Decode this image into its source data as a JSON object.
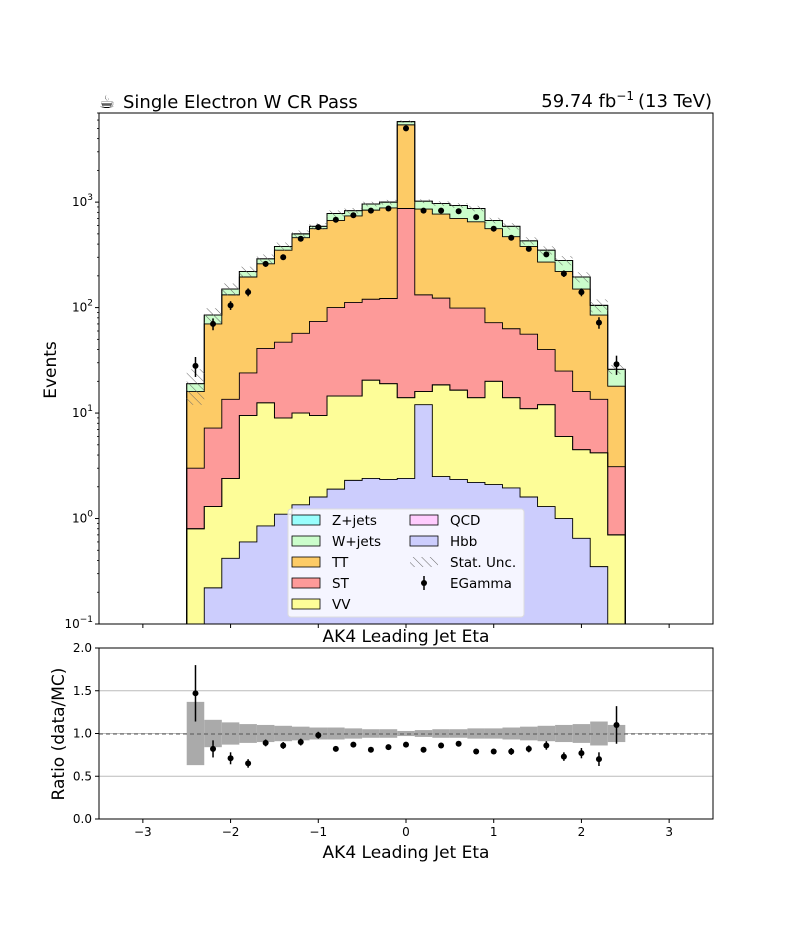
{
  "header": {
    "icon": "coffee-icon",
    "title": "Single Electron W CR Pass",
    "lumi_value": "59.74 fb",
    "lumi_exponent": "−1",
    "lumi_energy": "(13 TeV)"
  },
  "chart_data": [
    {
      "type": "stacked-histogram",
      "ylabel": "Events",
      "xlabel": "AK4 Leading Jet Eta",
      "yscale": "log",
      "ylim": [
        0.1,
        7000
      ],
      "xlim": [
        -3.5,
        3.5
      ],
      "ytick_labels": [
        {
          "value": 0.1,
          "base": "10",
          "exp": "−1"
        },
        {
          "value": 1,
          "base": "10",
          "exp": "0"
        },
        {
          "value": 10,
          "base": "10",
          "exp": "1"
        },
        {
          "value": 100,
          "base": "10",
          "exp": "2"
        },
        {
          "value": 1000,
          "base": "10",
          "exp": "3"
        }
      ],
      "bin_edges": [
        -2.5,
        -2.3,
        -2.1,
        -1.9,
        -1.7,
        -1.5,
        -1.3,
        -1.1,
        -0.9,
        -0.7,
        -0.5,
        -0.3,
        -0.1,
        0.1,
        0.3,
        0.5,
        0.7,
        0.9,
        1.1,
        1.3,
        1.5,
        1.7,
        1.9,
        2.1,
        2.3,
        2.5
      ],
      "stack_cumulative": [
        {
          "name": "Hbb",
          "color": "#cccdfd",
          "values": [
            0.1,
            0.22,
            0.42,
            0.6,
            0.85,
            1.1,
            1.35,
            1.6,
            1.9,
            2.3,
            2.4,
            2.35,
            2.4,
            12,
            2.5,
            2.35,
            2.2,
            2.1,
            1.95,
            1.6,
            1.3,
            1.0,
            0.65,
            0.35,
            0.1
          ]
        },
        {
          "name": "VV",
          "color": "#fdfd98",
          "values": [
            0.8,
            1.3,
            2.4,
            9.5,
            12.5,
            9,
            10,
            9.5,
            14.5,
            14.5,
            20.5,
            19,
            14,
            16,
            18.5,
            16.5,
            14,
            20,
            14,
            11,
            12,
            6,
            4.5,
            4.2,
            0.7
          ]
        },
        {
          "name": "QCD",
          "color": "#ffccfe",
          "values": [
            0.8,
            1.3,
            2.4,
            9.5,
            12.5,
            9,
            10,
            9.5,
            14.5,
            14.5,
            20.5,
            19,
            14,
            16,
            18.5,
            16.5,
            14,
            20,
            14,
            11,
            12,
            6,
            4.5,
            4.2,
            0.7
          ]
        },
        {
          "name": "ST",
          "color": "#fd9a99",
          "values": [
            3.0,
            7.2,
            13.5,
            24,
            41,
            47,
            57,
            74,
            100,
            112,
            120,
            122,
            870,
            132,
            123,
            99,
            99,
            72,
            63,
            56,
            40,
            25,
            16,
            13.5,
            3.1
          ]
        },
        {
          "name": "TT",
          "color": "#fdcb66",
          "values": [
            16,
            70,
            132,
            195,
            260,
            350,
            460,
            560,
            670,
            740,
            840,
            880,
            5400,
            860,
            770,
            700,
            650,
            560,
            470,
            380,
            270,
            220,
            150,
            85,
            18
          ]
        },
        {
          "name": "W+jets",
          "color": "#cbfdcb",
          "values": [
            19,
            85,
            150,
            220,
            290,
            380,
            500,
            590,
            780,
            830,
            960,
            1000,
            5800,
            1020,
            970,
            930,
            870,
            670,
            590,
            430,
            350,
            280,
            195,
            105,
            26
          ]
        },
        {
          "name": "Z+jets",
          "color": "#99fefd",
          "values": [
            19,
            85,
            150,
            220,
            290,
            380,
            500,
            590,
            780,
            830,
            960,
            1000,
            5800,
            1020,
            970,
            930,
            870,
            670,
            590,
            430,
            350,
            280,
            195,
            105,
            26
          ]
        }
      ],
      "data": {
        "name": "EGamma",
        "x": [
          -2.4,
          -2.2,
          -2.0,
          -1.8,
          -1.6,
          -1.4,
          -1.2,
          -1.0,
          -0.8,
          -0.6,
          -0.4,
          -0.2,
          0.0,
          0.2,
          0.4,
          0.6,
          0.8,
          1.0,
          1.2,
          1.4,
          1.6,
          1.8,
          2.0,
          2.2,
          2.4
        ],
        "y": [
          28,
          70,
          105,
          140,
          260,
          300,
          450,
          580,
          680,
          750,
          830,
          870,
          5000,
          830,
          830,
          820,
          720,
          560,
          460,
          360,
          320,
          210,
          140,
          72,
          29
        ],
        "yerr": [
          6,
          9,
          10,
          12,
          16,
          17,
          21,
          24,
          26,
          27,
          29,
          29,
          70,
          29,
          29,
          29,
          27,
          24,
          21,
          19,
          18,
          15,
          12,
          9,
          6
        ]
      },
      "legend": {
        "placement": "lower-center",
        "entries": [
          {
            "label": "Z+jets",
            "color": "#99fefd",
            "kind": "patch"
          },
          {
            "label": "W+jets",
            "color": "#cbfdcb",
            "kind": "patch"
          },
          {
            "label": "TT",
            "color": "#fdcb66",
            "kind": "patch"
          },
          {
            "label": "ST",
            "color": "#fd9a99",
            "kind": "patch"
          },
          {
            "label": "VV",
            "color": "#fdfd98",
            "kind": "patch"
          },
          {
            "label": "QCD",
            "color": "#ffccfe",
            "kind": "patch"
          },
          {
            "label": "Hbb",
            "color": "#cccdfd",
            "kind": "patch"
          },
          {
            "label": "Stat. Unc.",
            "color": "#777777",
            "kind": "hatch"
          },
          {
            "label": "EGamma",
            "color": "#000000",
            "kind": "errorbar"
          }
        ]
      }
    },
    {
      "type": "ratio",
      "ylabel": "Ratio (data/MC)",
      "xlabel": "AK4 Leading Jet Eta",
      "xlim": [
        -3.5,
        3.5
      ],
      "ylim": [
        0.0,
        2.0
      ],
      "ytick_labels": [
        "0.0",
        "0.5",
        "1.0",
        "1.5",
        "2.0"
      ],
      "xtick_labels": [
        "−3",
        "−2",
        "−1",
        "0",
        "1",
        "2",
        "3"
      ],
      "grid": "horizontal",
      "unc_band_halfwidth": [
        0.37,
        0.16,
        0.13,
        0.11,
        0.1,
        0.09,
        0.08,
        0.07,
        0.07,
        0.06,
        0.05,
        0.05,
        0.03,
        0.04,
        0.05,
        0.05,
        0.06,
        0.06,
        0.07,
        0.08,
        0.09,
        0.1,
        0.11,
        0.14,
        0.1
      ],
      "unc_band_color": "#aaaaaa",
      "points": {
        "x": [
          -2.4,
          -2.2,
          -2.0,
          -1.8,
          -1.6,
          -1.4,
          -1.2,
          -1.0,
          -0.8,
          -0.6,
          -0.4,
          -0.2,
          0.0,
          0.2,
          0.4,
          0.6,
          0.8,
          1.0,
          1.2,
          1.4,
          1.6,
          1.8,
          2.0,
          2.2,
          2.4
        ],
        "y": [
          1.47,
          0.82,
          0.71,
          0.65,
          0.89,
          0.86,
          0.9,
          0.98,
          0.82,
          0.87,
          0.81,
          0.84,
          0.87,
          0.81,
          0.86,
          0.88,
          0.79,
          0.79,
          0.79,
          0.82,
          0.86,
          0.73,
          0.77,
          0.7,
          1.1
        ],
        "yerr": [
          0.33,
          0.1,
          0.07,
          0.05,
          0.04,
          0.04,
          0.04,
          0.04,
          0.03,
          0.03,
          0.03,
          0.03,
          0.02,
          0.03,
          0.03,
          0.03,
          0.03,
          0.03,
          0.04,
          0.04,
          0.05,
          0.05,
          0.06,
          0.08,
          0.22
        ]
      }
    }
  ]
}
